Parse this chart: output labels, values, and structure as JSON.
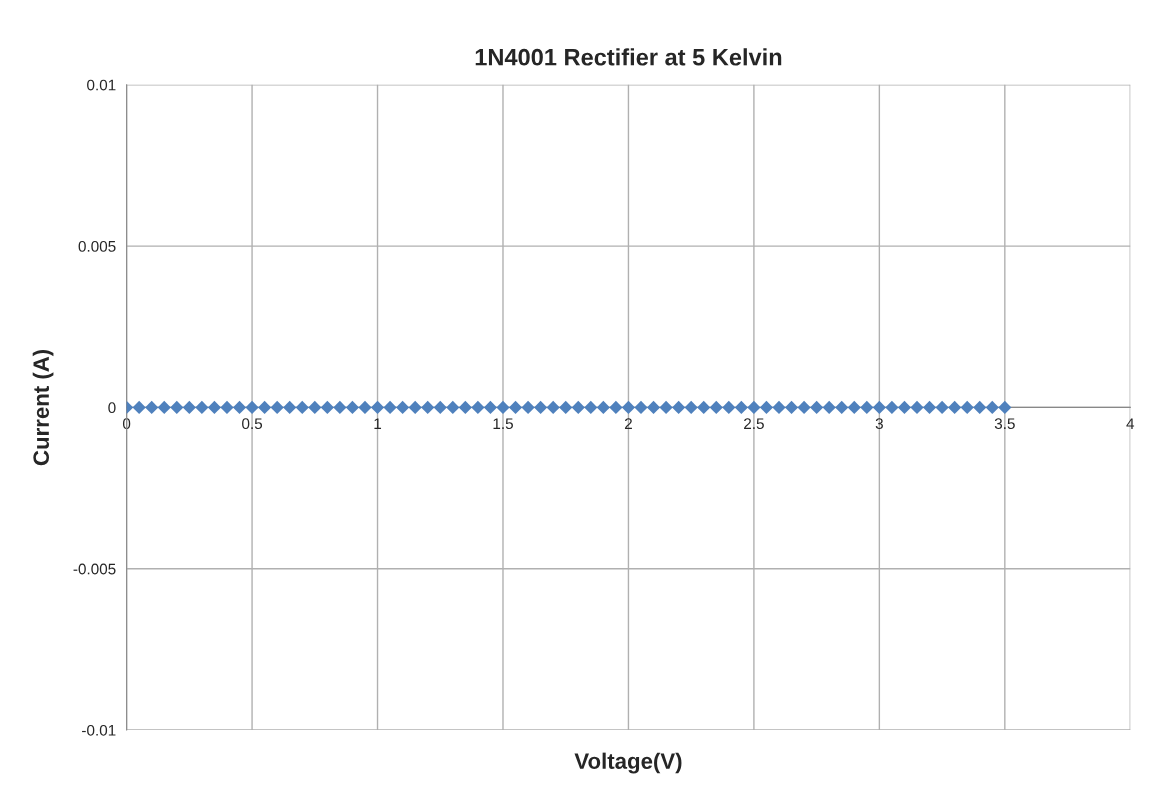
{
  "chart_data": {
    "type": "scatter",
    "title": "1N4001 Rectifier at 5 Kelvin",
    "xlabel": "Voltage(V)",
    "ylabel": "Current (A)",
    "x": [
      0,
      0.05,
      0.1,
      0.15,
      0.2,
      0.25,
      0.3,
      0.35,
      0.4,
      0.45,
      0.5,
      0.55,
      0.6,
      0.65,
      0.7,
      0.75,
      0.8,
      0.85,
      0.9,
      0.95,
      1,
      1.05,
      1.1,
      1.15,
      1.2,
      1.25,
      1.3,
      1.35,
      1.4,
      1.45,
      1.5,
      1.55,
      1.6,
      1.65,
      1.7,
      1.75,
      1.8,
      1.85,
      1.9,
      1.95,
      2,
      2.05,
      2.1,
      2.15,
      2.2,
      2.25,
      2.3,
      2.35,
      2.4,
      2.45,
      2.5,
      2.55,
      2.6,
      2.65,
      2.7,
      2.75,
      2.8,
      2.85,
      2.9,
      2.95,
      3,
      3.05,
      3.1,
      3.15,
      3.2,
      3.25,
      3.3,
      3.35,
      3.4,
      3.45,
      3.5
    ],
    "series": [
      {
        "color": "#4f81bd",
        "values": [
          0,
          0,
          0,
          0,
          0,
          0,
          0,
          0,
          0,
          0,
          0,
          0,
          0,
          0,
          0,
          0,
          0,
          0,
          0,
          0,
          0,
          0,
          0,
          0,
          0,
          0,
          0,
          0,
          0,
          0,
          0,
          0,
          0,
          0,
          0,
          0,
          0,
          0,
          0,
          0,
          0,
          0,
          0,
          0,
          0,
          0,
          0,
          0,
          0,
          0,
          0,
          0,
          0,
          0,
          0,
          0,
          0,
          0,
          0,
          0,
          0,
          0,
          0,
          0,
          0,
          0,
          0,
          0,
          0,
          0,
          0
        ]
      }
    ],
    "xlim": [
      0,
      4
    ],
    "xticks": [
      0,
      0.5,
      1,
      1.5,
      2,
      2.5,
      3,
      3.5,
      4
    ],
    "ylim": [
      -0.01,
      0.01
    ],
    "yticks": [
      -0.01,
      -0.005,
      0,
      0.005,
      0.01
    ],
    "grid": true,
    "marker": "diamond"
  }
}
